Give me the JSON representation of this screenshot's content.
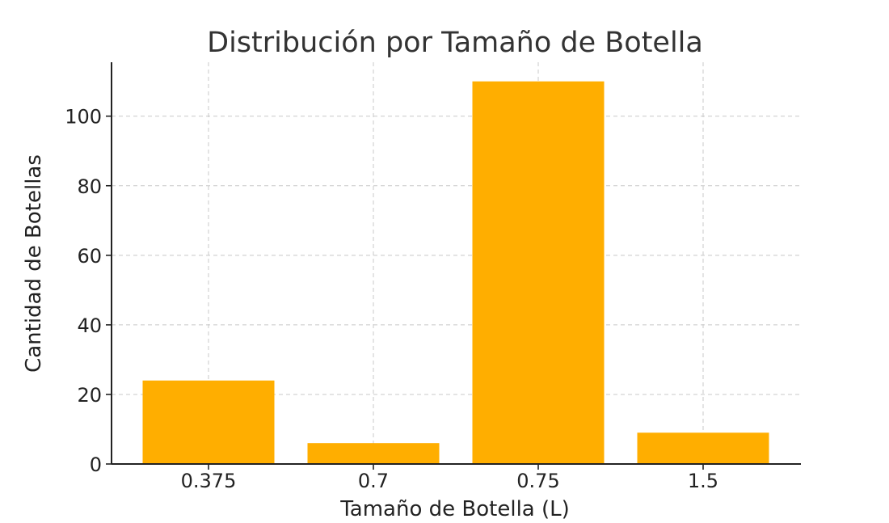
{
  "chart_data": {
    "type": "bar",
    "title": "Distribución por Tamaño de Botella",
    "xlabel": "Tamaño de Botella (L)",
    "ylabel": "Cantidad de Botellas",
    "categories": [
      "0.375",
      "0.7",
      "0.75",
      "1.5"
    ],
    "values": [
      24,
      6,
      110,
      9
    ],
    "ylim": [
      0,
      115.5
    ],
    "yticks": [
      0,
      20,
      40,
      60,
      80,
      100
    ],
    "grid": true,
    "bar_color": "#ffae00"
  }
}
